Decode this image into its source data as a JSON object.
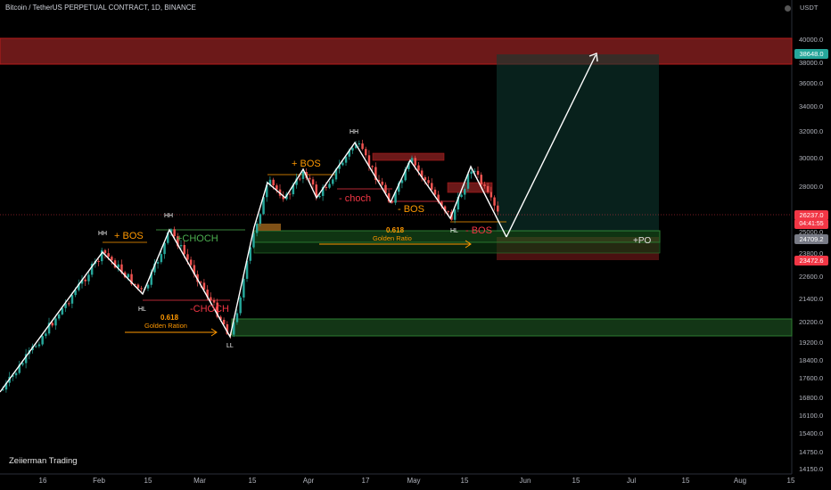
{
  "header": {
    "title": "Bitcoin / TetherUS PERPETUAL CONTRACT, 1D, BINANCE",
    "currency": "USDT",
    "watermark": "Zeiierman Trading"
  },
  "y_axis_ticks": [
    "40000.0",
    "38000.0",
    "36000.0",
    "34000.0",
    "32000.0",
    "30000.0",
    "28000.0",
    "25000.0",
    "23800.0",
    "22600.0",
    "21400.0",
    "20200.0",
    "19200.0",
    "18400.0",
    "17600.0",
    "16800.0",
    "16100.0",
    "15400.0",
    "14750.0",
    "14150.0"
  ],
  "x_axis_ticks": [
    "16",
    "Feb",
    "15",
    "Mar",
    "15",
    "Apr",
    "17",
    "May",
    "15",
    "Jun",
    "15",
    "Jul",
    "15",
    "Aug",
    "15"
  ],
  "price_tags": {
    "target": {
      "value": "38648.0",
      "color": "#26a69a"
    },
    "current": {
      "value": "26237.0",
      "sub": "04:41:55",
      "color": "#f23645"
    },
    "entry": {
      "value": "24709.2",
      "color": "#787b86"
    },
    "stop": {
      "value": "23472.6",
      "color": "#f23645"
    }
  },
  "annotations": {
    "hh_left": "HH",
    "bos_left": "+ BOS",
    "hh_mid": "HH",
    "choch_plus": "+CHOCH",
    "hl_left": "HL",
    "choch_minus": "-CHOCH",
    "fib_left_value": "0.618",
    "fib_left_label": "Golden Ration",
    "ll": "LL",
    "bos_plus_apr": "+ BOS",
    "hh_top": "HH",
    "choch_minus_apr": "- choch",
    "bos_minus_may": "- BOS",
    "fib_right_value": "0.618",
    "fib_right_label": "Golden Ratio",
    "hl_right": "HL",
    "bos_minus_late": "- BOS",
    "po": "+PO"
  },
  "colors": {
    "bull": "#26a69a",
    "bear": "#ef5350",
    "annotation_orange": "#ff9800",
    "annotation_red": "#f23645",
    "annotation_green": "#4caf50"
  }
}
